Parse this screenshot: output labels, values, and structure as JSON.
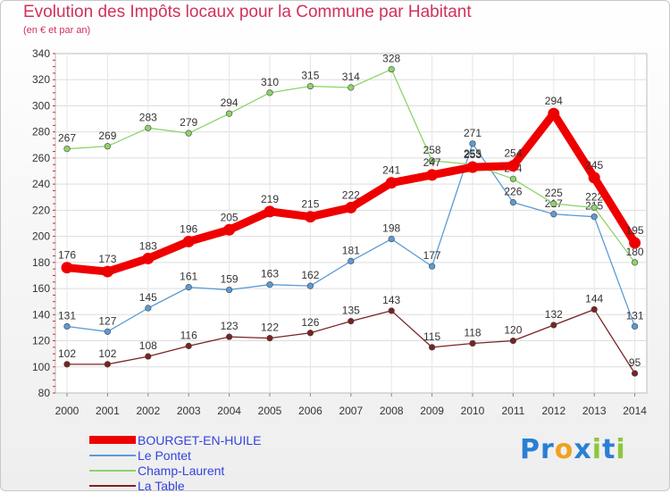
{
  "chart_data": {
    "type": "line",
    "title": "Evolution des Impôts locaux pour la Commune par Habitant",
    "subtitle": "(en € et par an)",
    "categories": [
      "2000",
      "2001",
      "2002",
      "2003",
      "2004",
      "2005",
      "2006",
      "2007",
      "2008",
      "2009",
      "2010",
      "2011",
      "2012",
      "2013",
      "2014"
    ],
    "ylim": [
      80,
      340
    ],
    "yticks": [
      80,
      100,
      120,
      140,
      160,
      180,
      200,
      220,
      240,
      260,
      280,
      300,
      320,
      340
    ],
    "grid": "horizontal",
    "series": [
      {
        "name": "BOURGET-EN-HUILE",
        "color": "#ee0000",
        "emphasis": true,
        "values": [
          176,
          173,
          183,
          196,
          205,
          219,
          215,
          222,
          241,
          247,
          253,
          254,
          294,
          245,
          195
        ]
      },
      {
        "name": "Le Pontet",
        "color": "#5b9bd5",
        "emphasis": false,
        "values": [
          131,
          127,
          145,
          161,
          159,
          163,
          162,
          181,
          198,
          177,
          271,
          226,
          217,
          215,
          131
        ]
      },
      {
        "name": "Champ-Laurent",
        "color": "#8cd46a",
        "emphasis": false,
        "values": [
          267,
          269,
          283,
          279,
          294,
          310,
          315,
          314,
          328,
          258,
          255,
          244,
          225,
          222,
          180
        ]
      },
      {
        "name": "La Table",
        "color": "#7a2323",
        "emphasis": false,
        "values": [
          102,
          102,
          108,
          116,
          123,
          122,
          126,
          135,
          143,
          115,
          118,
          120,
          132,
          144,
          95
        ]
      }
    ]
  },
  "legend_text_color": "#3344dd",
  "branding": {
    "letters": [
      "P",
      "r",
      "o",
      "x",
      "i",
      "t",
      "i"
    ],
    "colors": [
      "#2a7fd4",
      "#2a7fd4",
      "#f0a21f",
      "#2a7fd4",
      "#8dc63f",
      "#2a7fd4",
      "#8dc63f"
    ]
  }
}
